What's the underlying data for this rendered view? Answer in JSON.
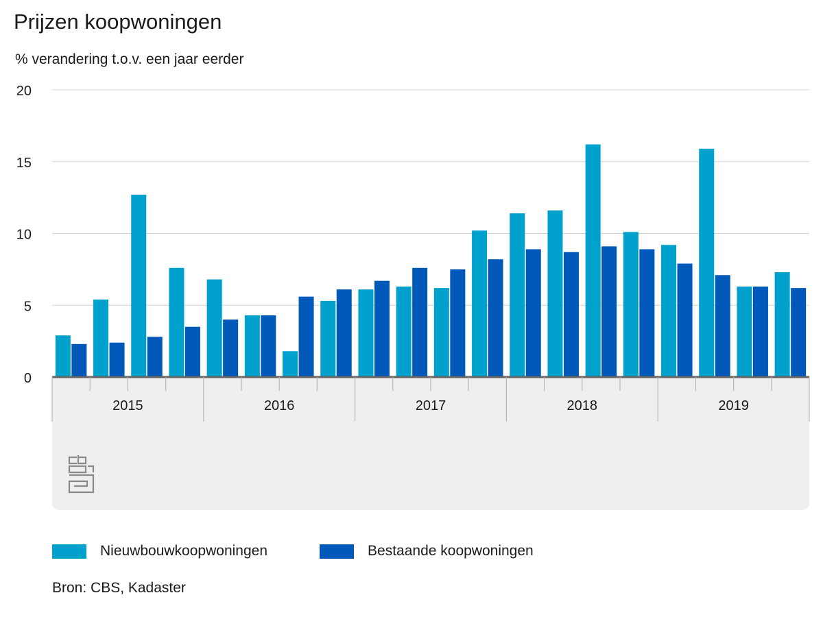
{
  "chart_data": {
    "type": "bar",
    "title": "Prijzen koopwoningen",
    "ylabel": "% verandering t.o.v. een jaar eerder",
    "ylim": [
      0,
      20
    ],
    "yticks": [
      0,
      5,
      10,
      15,
      20
    ],
    "year_labels": [
      "2015",
      "2016",
      "2017",
      "2018",
      "2019"
    ],
    "categories": [
      "2015 Q1",
      "2015 Q2",
      "2015 Q3",
      "2015 Q4",
      "2016 Q1",
      "2016 Q2",
      "2016 Q3",
      "2016 Q4",
      "2017 Q1",
      "2017 Q2",
      "2017 Q3",
      "2017 Q4",
      "2018 Q1",
      "2018 Q2",
      "2018 Q3",
      "2018 Q4",
      "2019 Q1",
      "2019 Q2",
      "2019 Q3",
      "2019 Q4"
    ],
    "series": [
      {
        "name": "Nieuwbouwkoopwoningen",
        "color": "#00a1cd",
        "values": [
          2.9,
          5.4,
          12.7,
          7.6,
          6.8,
          4.3,
          1.8,
          5.3,
          6.1,
          6.3,
          6.2,
          10.2,
          11.4,
          11.6,
          16.2,
          10.1,
          9.2,
          15.9,
          6.3,
          7.3
        ]
      },
      {
        "name": "Bestaande koopwoningen",
        "color": "#0058b8",
        "values": [
          2.3,
          2.4,
          2.8,
          3.5,
          4.0,
          4.3,
          5.6,
          6.1,
          6.7,
          7.6,
          7.5,
          8.2,
          8.9,
          8.7,
          9.1,
          8.9,
          7.9,
          7.1,
          6.3,
          6.2
        ]
      }
    ],
    "legend_position": "bottom-left",
    "grid": true,
    "source": "Bron: CBS, Kadaster"
  }
}
